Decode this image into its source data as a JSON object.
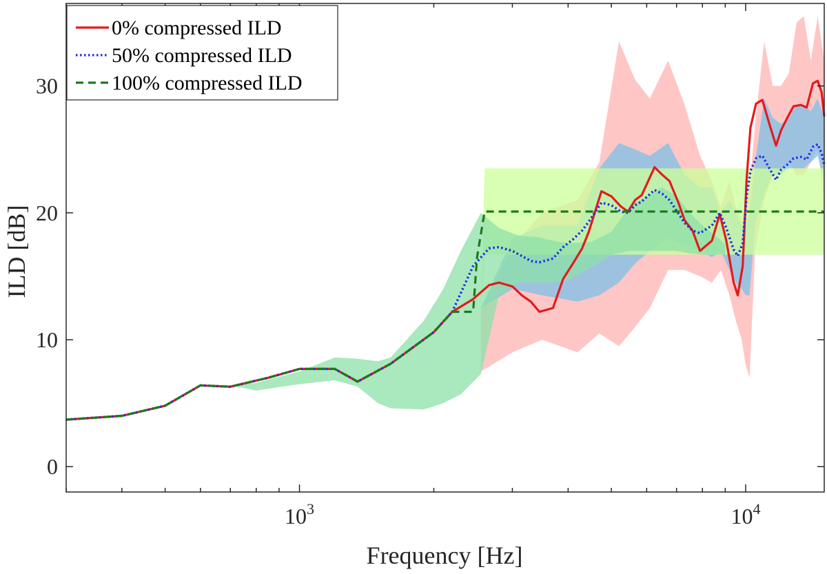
{
  "chart_data": {
    "type": "line",
    "xlabel": "Frequency [Hz]",
    "ylabel": "ILD [dB]",
    "xscale": "log",
    "xlim": [
      300,
      15000
    ],
    "ylim": [
      -2,
      36.5
    ],
    "yticks": [
      0,
      10,
      20,
      30
    ],
    "xticks_major": [
      {
        "value": 1000,
        "base": "10",
        "exp": "3"
      },
      {
        "value": 10000,
        "base": "10",
        "exp": "4"
      }
    ],
    "grid": false,
    "legend": "top-left",
    "series": [
      {
        "name": "0% compressed ILD",
        "color": "#e31a1c",
        "style": "solid",
        "x": [
          300,
          400,
          500,
          600,
          700,
          850,
          1000,
          1200,
          1350,
          1600,
          2000,
          2200,
          2450,
          2660,
          2800,
          3000,
          3150,
          3300,
          3450,
          3700,
          3900,
          4100,
          4300,
          4450,
          4750,
          5000,
          5250,
          5450,
          5650,
          5850,
          6250,
          6500,
          6750,
          7050,
          7300,
          7600,
          7900,
          8400,
          8750,
          9050,
          9400,
          9600,
          9850,
          10050,
          10250,
          10550,
          10900,
          11300,
          11700,
          12000,
          12400,
          12800,
          13300,
          13700,
          14150,
          14500,
          14800,
          15000
        ],
        "y": [
          3.7,
          4.0,
          4.8,
          6.4,
          6.3,
          7.0,
          7.7,
          7.7,
          6.7,
          8.1,
          10.6,
          12.2,
          13.2,
          14.3,
          14.5,
          14.2,
          13.5,
          13.0,
          12.2,
          12.5,
          14.8,
          16.0,
          17.2,
          18.5,
          21.7,
          21.3,
          20.5,
          20.1,
          21.0,
          21.4,
          23.6,
          23.0,
          22.5,
          20.9,
          19.4,
          18.6,
          17.0,
          17.8,
          19.9,
          17.8,
          14.5,
          13.5,
          15.8,
          22.7,
          26.7,
          28.6,
          28.9,
          27.0,
          25.3,
          26.5,
          27.5,
          28.4,
          28.5,
          28.3,
          30.2,
          30.4,
          29.5,
          27.6
        ]
      },
      {
        "name": "50% compressed ILD",
        "color": "#1f2fe0",
        "style": "dotted",
        "x": [
          300,
          400,
          500,
          600,
          700,
          850,
          1000,
          1200,
          1350,
          1600,
          2000,
          2200,
          2450,
          2660,
          2800,
          3000,
          3150,
          3300,
          3450,
          3700,
          3900,
          4100,
          4300,
          4450,
          4750,
          5000,
          5250,
          5450,
          5650,
          5850,
          6250,
          6500,
          6750,
          7050,
          7300,
          7600,
          7900,
          8400,
          8750,
          9050,
          9400,
          9600,
          9850,
          10050,
          10250,
          10550,
          10900,
          11300,
          11700,
          12000,
          12400,
          12800,
          13300,
          13700,
          14150,
          14500,
          14800,
          15000
        ],
        "y": [
          3.7,
          4.0,
          4.8,
          6.4,
          6.3,
          7.0,
          7.7,
          7.7,
          6.7,
          8.1,
          10.6,
          12.2,
          15.8,
          17.2,
          17.3,
          17.0,
          16.6,
          16.2,
          16.1,
          16.4,
          17.3,
          17.9,
          18.6,
          19.3,
          20.8,
          20.6,
          20.1,
          20.0,
          20.6,
          20.9,
          21.8,
          21.5,
          21.0,
          20.0,
          19.2,
          18.6,
          18.4,
          19.0,
          20.0,
          18.8,
          17.1,
          16.6,
          17.6,
          21.3,
          23.3,
          24.3,
          24.5,
          23.5,
          22.6,
          23.4,
          23.8,
          24.3,
          24.4,
          24.2,
          25.2,
          25.4,
          24.7,
          23.8
        ]
      },
      {
        "name": "100% compressed ILD",
        "color": "#1a7a1a",
        "style": "dashed",
        "x": [
          300,
          400,
          500,
          600,
          700,
          850,
          1000,
          1200,
          1350,
          1600,
          2000,
          2200,
          2450,
          2500,
          2600,
          15000
        ],
        "y": [
          3.7,
          4.0,
          4.8,
          6.4,
          6.3,
          7.0,
          7.7,
          7.7,
          6.7,
          8.1,
          10.6,
          12.2,
          12.2,
          16.5,
          20.1,
          20.1
        ]
      }
    ],
    "bands": [
      {
        "fill": "#ffb3b3",
        "x": [
          2550,
          3000,
          3500,
          4200,
          4700,
          5200,
          5650,
          6100,
          6700,
          7300,
          7900,
          8400,
          8800,
          9200,
          9500,
          9800,
          10000,
          10200,
          10500,
          11000,
          11500,
          12000,
          12500,
          13000,
          13500,
          14000,
          14500,
          15000
        ],
        "upper": [
          12.5,
          17.3,
          20.0,
          21.0,
          24.0,
          33.5,
          30.5,
          29.0,
          32.0,
          28.5,
          24.5,
          22.5,
          20.5,
          22.5,
          20.5,
          19.5,
          19.5,
          22.0,
          27.0,
          33.5,
          30.0,
          30.0,
          31.0,
          35.0,
          35.5,
          32.0,
          35.5,
          32.0
        ],
        "lower": [
          7.5,
          9.0,
          10.0,
          9.0,
          10.5,
          9.5,
          11.0,
          12.5,
          15.5,
          15.5,
          15.0,
          14.5,
          15.5,
          13.5,
          11.5,
          10.0,
          8.0,
          7.0,
          17.0,
          21.0,
          23.0,
          23.0,
          24.0,
          23.0,
          23.0,
          24.0,
          25.0,
          21.0
        ]
      },
      {
        "fill": "#7cc0e8",
        "x": [
          2550,
          3000,
          3500,
          4200,
          4700,
          5200,
          5650,
          6100,
          6700,
          7300,
          7900,
          8400,
          8800,
          9200,
          9500,
          9800,
          10000,
          10200,
          10500,
          11000,
          11500,
          12000,
          12500,
          13000,
          13500,
          14000,
          14500,
          15000
        ],
        "upper": [
          12.5,
          18.0,
          19.0,
          19.0,
          23.5,
          25.5,
          25.0,
          24.5,
          25.5,
          23.0,
          22.0,
          22.0,
          20.0,
          21.0,
          20.0,
          19.0,
          19.0,
          20.0,
          24.0,
          29.0,
          27.5,
          27.0,
          27.5,
          28.5,
          28.5,
          28.0,
          29.0,
          27.5
        ],
        "lower": [
          12.5,
          14.0,
          13.5,
          13.0,
          13.5,
          14.5,
          16.0,
          17.0,
          18.0,
          17.5,
          17.0,
          16.5,
          17.0,
          15.5,
          14.5,
          14.0,
          13.5,
          13.5,
          19.0,
          21.5,
          23.0,
          23.0,
          23.5,
          23.5,
          23.5,
          24.0,
          24.5,
          22.5
        ]
      },
      {
        "fill": "#ccff99",
        "x": [
          2550,
          2600,
          15000
        ],
        "upper": [
          12.2,
          23.5,
          23.5
        ],
        "lower": [
          12.2,
          16.7,
          16.7
        ]
      },
      {
        "fill": "#8ee0a8",
        "x": [
          300,
          700,
          800,
          1000,
          1200,
          1350,
          1500,
          1600,
          1900,
          2100,
          2300,
          2550,
          2800,
          3100,
          3400,
          3700,
          4000,
          4500,
          5000,
          5500,
          6000,
          6500,
          7000,
          7500,
          8000,
          8500,
          9000
        ],
        "upper": [
          3.7,
          6.4,
          6.6,
          7.5,
          8.6,
          8.5,
          8.3,
          8.6,
          11.5,
          14.0,
          17.0,
          20.0,
          18.8,
          18.2,
          18.1,
          17.8,
          17.6,
          17.7,
          18.5,
          20.5,
          21.3,
          22.0,
          21.3,
          20.0,
          19.0,
          18.3,
          17.5
        ],
        "lower": [
          3.7,
          6.4,
          6.0,
          6.5,
          6.8,
          6.3,
          5.0,
          4.6,
          4.5,
          5.0,
          5.7,
          7.3,
          13.5,
          14.5,
          14.5,
          14.5,
          14.7,
          15.7,
          16.7,
          17.0,
          17.0,
          17.0,
          17.0,
          16.8,
          16.7,
          16.7,
          16.7
        ]
      }
    ]
  }
}
